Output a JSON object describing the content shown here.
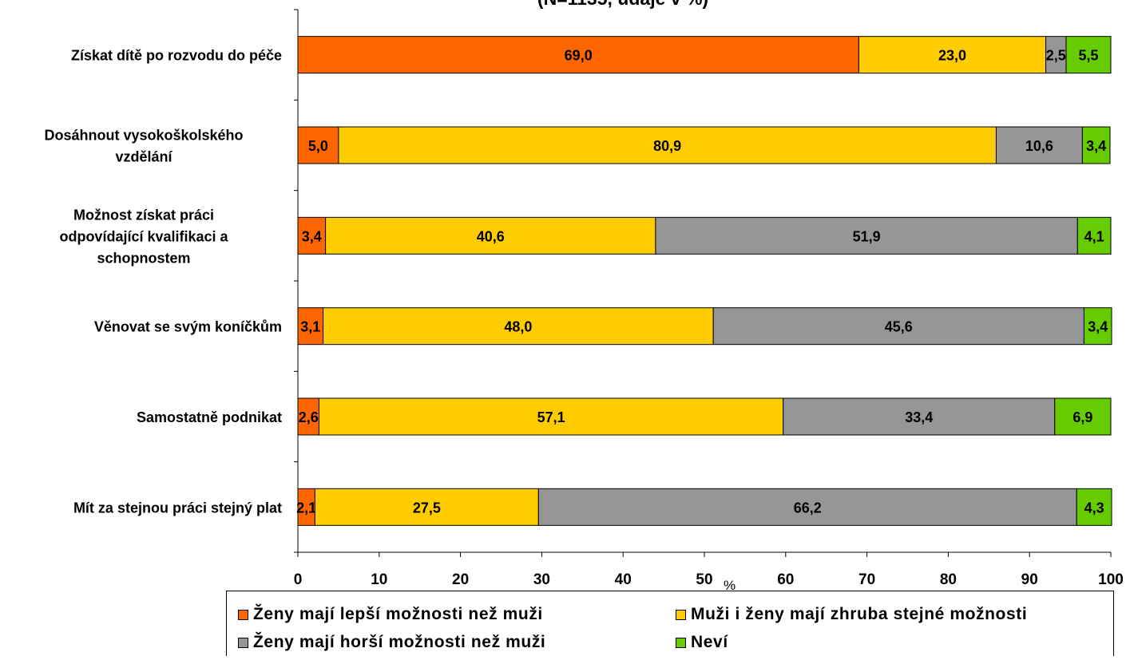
{
  "chart_data": {
    "type": "bar",
    "orientation": "horizontal",
    "stacked": true,
    "title": "(N=1135, údaje v %)",
    "xlabel": "%",
    "xlim": [
      0,
      100
    ],
    "xticks": [
      0,
      10,
      20,
      30,
      40,
      50,
      60,
      70,
      80,
      90,
      100
    ],
    "categories": [
      [
        "Získat dítě po rozvodu do péče"
      ],
      [
        "Dosáhnout vysokoškolského",
        "vzdělání"
      ],
      [
        "Možnost získat práci",
        "odpovídající kvalifikaci a",
        "schopnostem"
      ],
      [
        "Věnovat se svým koníčkům"
      ],
      [
        "Samostatně podnikat"
      ],
      [
        "Mít za stejnou práci stejný plat"
      ]
    ],
    "series": [
      {
        "name": "Ženy mají lepší možnosti než muži",
        "color": "#FF6600",
        "values": [
          69.0,
          5.0,
          3.4,
          3.1,
          2.6,
          2.1
        ]
      },
      {
        "name": "Muži i ženy mají zhruba stejné možnosti",
        "color": "#FFCC00",
        "values": [
          23.0,
          80.9,
          40.6,
          48.0,
          57.1,
          27.5
        ]
      },
      {
        "name": "Ženy mají horší možnosti než muži",
        "color": "#969696",
        "values": [
          2.5,
          10.6,
          51.9,
          45.6,
          33.4,
          66.2
        ]
      },
      {
        "name": "Neví",
        "color": "#66CC00",
        "values": [
          5.5,
          3.4,
          4.1,
          3.4,
          6.9,
          4.3
        ]
      }
    ],
    "data_labels": [
      [
        "69,0",
        "5,0",
        "3,4",
        "3,1",
        "2,6",
        "2,1"
      ],
      [
        "23,0",
        "80,9",
        "40,6",
        "48,0",
        "57,1",
        "27,5"
      ],
      [
        "2,5",
        "10,6",
        "51,9",
        "45,6",
        "33,4",
        "66,2"
      ],
      [
        "5,5",
        "3,4",
        "4,1",
        "3,4",
        "6,9",
        "4,3"
      ]
    ],
    "legend_position": "bottom",
    "grid": false
  }
}
